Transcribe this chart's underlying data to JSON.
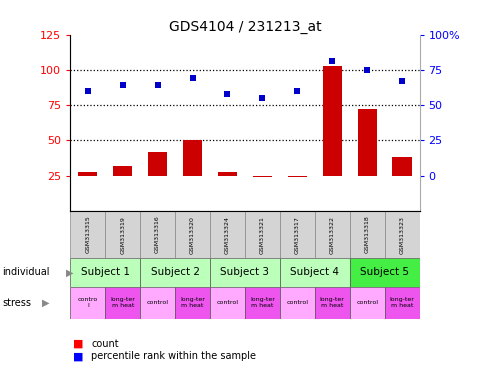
{
  "title": "GDS4104 / 231213_at",
  "samples": [
    "GSM313315",
    "GSM313319",
    "GSM313316",
    "GSM313320",
    "GSM313324",
    "GSM313321",
    "GSM313317",
    "GSM313322",
    "GSM313318",
    "GSM313323"
  ],
  "counts": [
    28,
    32,
    42,
    50,
    28,
    24,
    24,
    103,
    72,
    38
  ],
  "percentile_ranks": [
    85,
    89,
    89,
    94,
    83,
    80,
    85,
    106,
    100,
    92
  ],
  "bar_color": "#cc0000",
  "dot_color": "#0000cc",
  "yticks_left": [
    25,
    50,
    75,
    100,
    125
  ],
  "ytick_labels_right": [
    "0",
    "25",
    "50",
    "75",
    "100%"
  ],
  "dotted_lines": [
    50,
    75,
    100
  ],
  "ylim": [
    0,
    125
  ],
  "subjects_def": [
    {
      "start": 0,
      "end": 2,
      "label": "Subject 1",
      "color": "#bbffbb"
    },
    {
      "start": 2,
      "end": 4,
      "label": "Subject 2",
      "color": "#bbffbb"
    },
    {
      "start": 4,
      "end": 6,
      "label": "Subject 3",
      "color": "#bbffbb"
    },
    {
      "start": 6,
      "end": 8,
      "label": "Subject 4",
      "color": "#bbffbb"
    },
    {
      "start": 8,
      "end": 10,
      "label": "Subject 5",
      "color": "#44ee44"
    }
  ],
  "stress_labels": [
    "contro\nl",
    "long-ter\nm heat",
    "control",
    "long-ter\nm heat",
    "control",
    "long-ter\nm heat",
    "control",
    "long-ter\nm heat",
    "control",
    "long-ter\nm heat"
  ],
  "stress_colors_odd": "#ffaaff",
  "stress_colors_even": "#ee55ee",
  "sample_bg": "#d4d4d4"
}
